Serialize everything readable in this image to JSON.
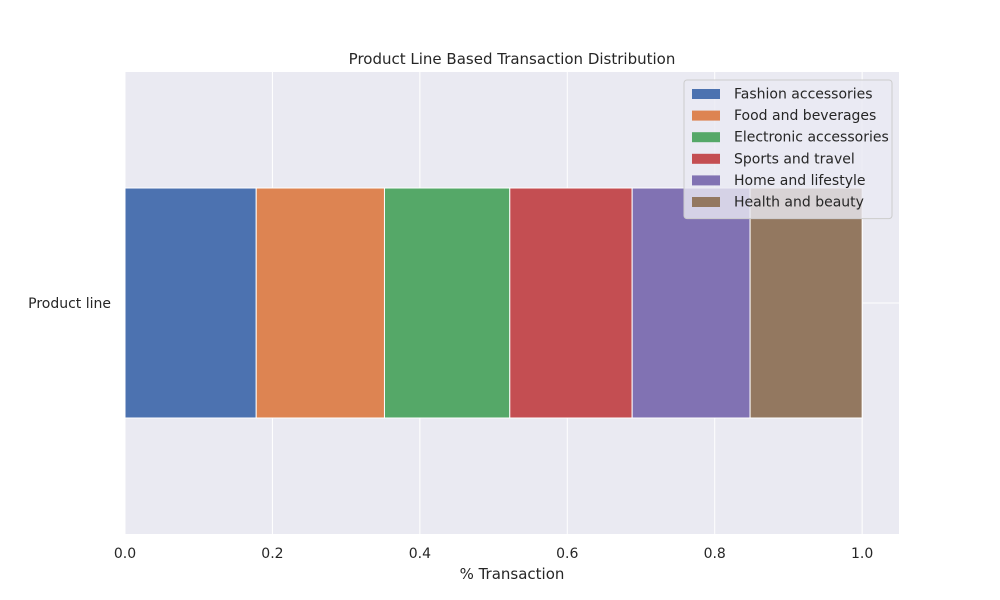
{
  "chart_data": {
    "type": "bar",
    "orientation": "horizontal",
    "stacked": true,
    "title": "Product Line Based Transaction Distribution",
    "xlabel": "% Transaction",
    "ylabel": "",
    "categories": [
      "Product line"
    ],
    "xlim": [
      0,
      1.05
    ],
    "xticks": [
      "0.0",
      "0.2",
      "0.4",
      "0.6",
      "0.8",
      "1.0"
    ],
    "grid": true,
    "legend_position": "top-right",
    "series": [
      {
        "name": "Fashion accessories",
        "values": [
          0.178
        ],
        "color": "#4c72b0"
      },
      {
        "name": "Food and beverages",
        "values": [
          0.174
        ],
        "color": "#dd8452"
      },
      {
        "name": "Electronic accessories",
        "values": [
          0.17
        ],
        "color": "#55a868"
      },
      {
        "name": "Sports and travel",
        "values": [
          0.166
        ],
        "color": "#c44e52"
      },
      {
        "name": "Home and lifestyle",
        "values": [
          0.16
        ],
        "color": "#8172b3"
      },
      {
        "name": "Health and beauty",
        "values": [
          0.152
        ],
        "color": "#937860"
      }
    ]
  },
  "colors": {
    "plot_background": "#eaeaf2",
    "grid": "#ffffff"
  }
}
